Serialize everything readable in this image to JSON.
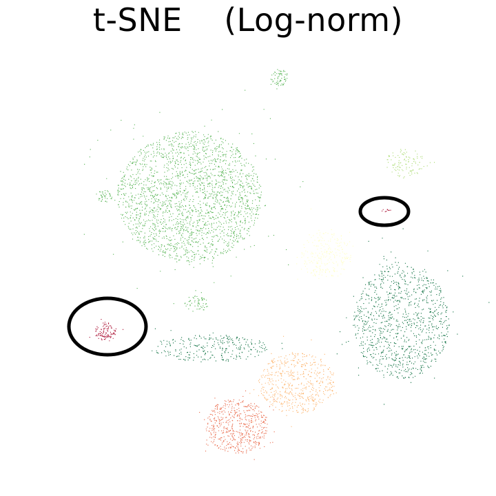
{
  "chart_data": {
    "type": "scatter",
    "title": "t-SNE    (Log-norm)",
    "xlabel": "",
    "ylabel": "",
    "axes_visible": false,
    "grid": false,
    "legend": "none",
    "clusters": [
      {
        "id": "main-medium-green",
        "color": "#4daf4a",
        "center": [
          275,
          285
        ],
        "spread": [
          105,
          95
        ],
        "weight": 9000
      },
      {
        "id": "top-island-green",
        "color": "#4daf4a",
        "center": [
          405,
          112
        ],
        "spread": [
          13,
          12
        ],
        "weight": 260
      },
      {
        "id": "left-lobe-green",
        "color": "#4daf4a",
        "center": [
          150,
          285
        ],
        "spread": [
          12,
          10
        ],
        "weight": 150
      },
      {
        "id": "bottom-lobe-green",
        "color": "#4daf4a",
        "center": [
          285,
          440
        ],
        "spread": [
          18,
          12
        ],
        "weight": 220
      },
      {
        "id": "light-green",
        "color": "#a6d96a",
        "center": [
          588,
          236
        ],
        "spread": [
          28,
          22
        ],
        "weight": 420
      },
      {
        "id": "pale-yellow",
        "color": "#ffffbf",
        "center": [
          473,
          370
        ],
        "spread": [
          36,
          36
        ],
        "weight": 1000
      },
      {
        "id": "dark-green-large",
        "color": "#006837",
        "center": [
          582,
          465
        ],
        "spread": [
          70,
          85
        ],
        "weight": 4200
      },
      {
        "id": "dark-green-arm",
        "color": "#006837",
        "center": [
          305,
          505
        ],
        "spread": [
          85,
          20
        ],
        "weight": 1100
      },
      {
        "id": "light-orange",
        "color": "#fdae61",
        "center": [
          430,
          555
        ],
        "spread": [
          55,
          45
        ],
        "weight": 2200
      },
      {
        "id": "orange-red",
        "color": "#e8603f",
        "center": [
          343,
          618
        ],
        "spread": [
          45,
          40
        ],
        "weight": 2200
      },
      {
        "id": "dark-red-left",
        "color": "#a50026",
        "center": [
          153,
          481
        ],
        "spread": [
          16,
          14
        ],
        "weight": 420
      },
      {
        "id": "dark-red-right",
        "color": "#a50026",
        "center": [
          560,
          305
        ],
        "spread": [
          7,
          2
        ],
        "weight": 40
      }
    ],
    "highlight_ellipses": [
      {
        "id": "left-ellipse",
        "center": [
          156,
          474
        ],
        "radii": [
          56,
          41
        ],
        "color": "#000000"
      },
      {
        "id": "right-ellipse",
        "center": [
          558,
          307
        ],
        "radii": [
          35,
          20
        ],
        "color": "#000000"
      }
    ]
  }
}
